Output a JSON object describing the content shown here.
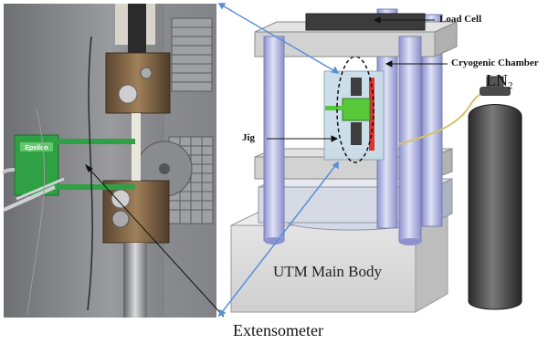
{
  "labels": {
    "load_cell": "Load Cell",
    "cryogenic_chamber": "Cryogenic Chamber",
    "ln2_main": "LN",
    "ln2_sub": "2",
    "jig": "Jig",
    "utm_main_body": "UTM Main Body",
    "extensometer": "Extensometer"
  },
  "photo": {
    "device_brand_text": "Epsilon"
  },
  "colors": {
    "column": "#b9bde6",
    "plate": "#d4d4d4",
    "base": "#dcdcdc",
    "cylinder": "#3e3e3e",
    "jig_green": "#59c73a",
    "chamber_glass": "#c9dde8",
    "leader_blue": "#5a8fd6",
    "hose": "#d8c06a",
    "red_rail": "#e0342f"
  }
}
